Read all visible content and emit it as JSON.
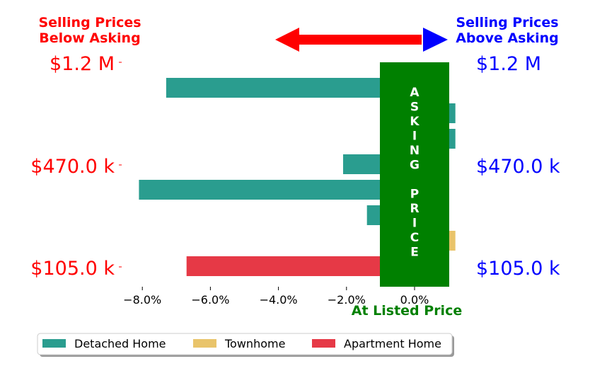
{
  "chart_data": {
    "type": "bar",
    "orientation": "horizontal",
    "below_label": [
      "Selling Prices",
      "Below Asking"
    ],
    "above_label": [
      "Selling Prices",
      "Above Asking"
    ],
    "center_label": "At Listed Price",
    "band_text": [
      "A",
      "S",
      "K",
      "I",
      "N",
      "G",
      "",
      "P",
      "R",
      "I",
      "C",
      "E"
    ],
    "left_price_labels": [
      "$1.2 M",
      "$470.0 k",
      "$105.0 k"
    ],
    "right_price_labels": [
      "$1.2 M",
      "$470.0 k",
      "$105.0 k"
    ],
    "xlim": [
      -8.5,
      1.2
    ],
    "x_ticks": [
      -8.0,
      -6.0,
      -4.0,
      -2.0,
      0.0
    ],
    "x_tick_labels": [
      "−8.0%",
      "−6.0%",
      "−4.0%",
      "−2.0%",
      "0.0%"
    ],
    "bars": [
      {
        "series": "Detached Home",
        "value": -7.3
      },
      {
        "series": "Detached Home",
        "value": 1.2
      },
      {
        "series": "Detached Home",
        "value": 1.2
      },
      {
        "series": "Detached Home",
        "value": -2.1
      },
      {
        "series": "Detached Home",
        "value": -8.1
      },
      {
        "series": "Detached Home",
        "value": -1.4
      },
      {
        "series": "Townhome",
        "value": 1.2
      },
      {
        "series": "Apartment Home",
        "value": -6.7
      }
    ],
    "legend": [
      {
        "name": "Detached Home",
        "color": "#2a9d8f"
      },
      {
        "name": "Townhome",
        "color": "#e9c46a"
      },
      {
        "name": "Apartment Home",
        "color": "#e63946"
      }
    ],
    "legend_position": "bottom",
    "colors": {
      "below": "#ff0000",
      "above": "#0000ff",
      "band": "#008000",
      "center_label": "#008000"
    },
    "grid": false
  }
}
